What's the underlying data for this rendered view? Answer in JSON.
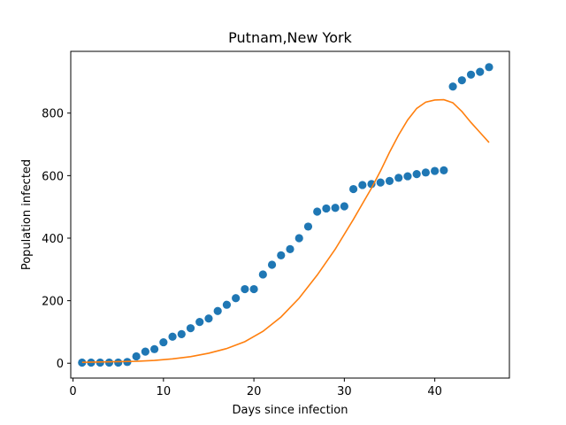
{
  "chart_data": {
    "type": "scatter",
    "title": "Putnam,New York",
    "xlabel": "Days since infection",
    "ylabel": "Population infected",
    "xlim": [
      -0.25,
      48.25
    ],
    "ylim": [
      -47.5,
      997.5
    ],
    "xticks": [
      0,
      10,
      20,
      30,
      40
    ],
    "yticks": [
      0,
      200,
      400,
      600,
      800
    ],
    "grid": false,
    "colors": {
      "observed": "#1f77b4",
      "model": "#ff7f0e"
    },
    "series": [
      {
        "kind": "scatter",
        "x": [
          1,
          2,
          3,
          4,
          5,
          6,
          7,
          8,
          9,
          10,
          11,
          12,
          13,
          14,
          15,
          16,
          17,
          18,
          19,
          20,
          21,
          22,
          23,
          24,
          25,
          26,
          27,
          28,
          29,
          30,
          31,
          32,
          33,
          34,
          35,
          36,
          37,
          38,
          39,
          40,
          41,
          42,
          43,
          44,
          45,
          46
        ],
        "y": [
          2,
          2,
          2,
          2,
          2,
          4,
          22,
          37,
          45,
          67,
          85,
          93,
          112,
          132,
          143,
          167,
          187,
          208,
          237,
          237,
          284,
          315,
          345,
          365,
          400,
          437,
          485,
          495,
          497,
          502,
          557,
          570,
          573,
          578,
          583,
          593,
          598,
          605,
          610,
          615,
          617,
          885,
          905,
          923,
          932,
          947
        ]
      },
      {
        "kind": "line",
        "x": [
          1,
          3,
          5,
          7,
          9,
          11,
          13,
          15,
          17,
          19,
          21,
          23,
          25,
          27,
          29,
          31,
          32,
          33,
          34,
          35,
          36,
          37,
          38,
          39,
          40,
          41,
          42,
          43,
          44,
          45,
          46
        ],
        "y": [
          3,
          4,
          5,
          6,
          9,
          14,
          21,
          32,
          47,
          69,
          102,
          148,
          208,
          282,
          365,
          460,
          510,
          560,
          615,
          675,
          730,
          778,
          815,
          835,
          842,
          843,
          833,
          805,
          770,
          738,
          706
        ]
      }
    ]
  }
}
